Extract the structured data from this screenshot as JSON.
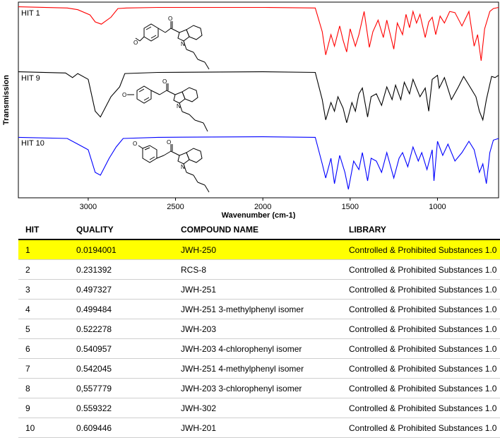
{
  "chart_data": {
    "type": "line",
    "ylabel": "Transmission",
    "xlabel": "Wavenumber (cm-1)",
    "xlim": [
      3400,
      650
    ],
    "x_ticks": [
      3000,
      2500,
      2000,
      1500,
      1000
    ],
    "series": [
      {
        "name": "HIT 1",
        "color": "#ff0000",
        "x": [
          3400,
          3120,
          3060,
          2990,
          2960,
          2925,
          2870,
          2830,
          2780,
          2600,
          2000,
          1700,
          1660,
          1640,
          1610,
          1590,
          1560,
          1540,
          1520,
          1500,
          1470,
          1450,
          1420,
          1390,
          1370,
          1340,
          1310,
          1290,
          1250,
          1230,
          1200,
          1180,
          1160,
          1140,
          1120,
          1100,
          1070,
          1050,
          1030,
          1010,
          985,
          960,
          930,
          900,
          860,
          820,
          790,
          770,
          750,
          730,
          700,
          680,
          650
        ],
        "y": [
          0.98,
          0.96,
          0.93,
          0.84,
          0.72,
          0.68,
          0.8,
          0.95,
          0.96,
          0.97,
          0.97,
          0.96,
          0.55,
          0.15,
          0.5,
          0.3,
          0.65,
          0.4,
          0.2,
          0.6,
          0.3,
          0.5,
          0.9,
          0.28,
          0.55,
          0.75,
          0.45,
          0.75,
          0.25,
          0.7,
          0.5,
          0.85,
          0.62,
          0.9,
          0.7,
          0.85,
          0.45,
          0.72,
          0.8,
          0.5,
          0.82,
          0.7,
          0.9,
          0.88,
          0.65,
          0.9,
          0.3,
          0.5,
          0.05,
          0.6,
          0.9,
          0.95,
          0.97
        ]
      },
      {
        "name": "HIT 9",
        "color": "#000000",
        "x": [
          3400,
          3130,
          3090,
          3060,
          3000,
          2960,
          2930,
          2870,
          2820,
          2790,
          2600,
          2000,
          1700,
          1660,
          1640,
          1610,
          1590,
          1570,
          1540,
          1520,
          1490,
          1470,
          1450,
          1430,
          1400,
          1380,
          1350,
          1320,
          1290,
          1260,
          1240,
          1210,
          1190,
          1160,
          1140,
          1100,
          1070,
          1050,
          1030,
          1000,
          990,
          960,
          920,
          880,
          850,
          820,
          780,
          760,
          740,
          720,
          690,
          670,
          650
        ],
        "y": [
          0.98,
          0.96,
          0.88,
          0.95,
          0.85,
          0.3,
          0.2,
          0.55,
          0.72,
          0.95,
          0.97,
          0.98,
          0.97,
          0.5,
          0.15,
          0.45,
          0.3,
          0.55,
          0.35,
          0.1,
          0.45,
          0.3,
          0.6,
          0.7,
          0.2,
          0.55,
          0.6,
          0.4,
          0.72,
          0.5,
          0.75,
          0.5,
          0.8,
          0.6,
          0.85,
          0.55,
          0.7,
          0.3,
          0.85,
          0.92,
          0.7,
          0.88,
          0.5,
          0.72,
          0.9,
          0.75,
          0.55,
          0.3,
          0.15,
          0.5,
          0.9,
          0.88,
          0.92
        ]
      },
      {
        "name": "HIT 10",
        "color": "#0000ff",
        "x": [
          3400,
          3120,
          3060,
          3000,
          2960,
          2930,
          2880,
          2840,
          2800,
          2600,
          2000,
          1700,
          1660,
          1640,
          1610,
          1590,
          1560,
          1530,
          1510,
          1480,
          1450,
          1430,
          1400,
          1380,
          1350,
          1320,
          1290,
          1250,
          1220,
          1200,
          1170,
          1140,
          1110,
          1090,
          1060,
          1030,
          1020,
          1000,
          970,
          940,
          900,
          860,
          820,
          790,
          760,
          740,
          720,
          700,
          680,
          650
        ],
        "y": [
          0.97,
          0.95,
          0.85,
          0.75,
          0.35,
          0.3,
          0.6,
          0.8,
          0.95,
          0.97,
          0.98,
          0.97,
          0.5,
          0.25,
          0.6,
          0.15,
          0.65,
          0.35,
          0.05,
          0.55,
          0.4,
          0.7,
          0.2,
          0.6,
          0.55,
          0.35,
          0.7,
          0.25,
          0.6,
          0.7,
          0.45,
          0.8,
          0.55,
          0.7,
          0.4,
          0.75,
          0.2,
          0.9,
          0.65,
          0.85,
          0.55,
          0.7,
          0.9,
          0.75,
          0.35,
          0.5,
          0.15,
          0.7,
          0.92,
          0.95
        ]
      }
    ]
  },
  "table": {
    "headers": [
      "HIT",
      "QUALITY",
      "COMPOUND NAME",
      "LIBRARY"
    ],
    "highlight_color": "#ffff00",
    "rows": [
      [
        "1",
        "0.0194001",
        "JWH-250",
        "Controlled & Prohibited Substances 1.0"
      ],
      [
        "2",
        "0.231392",
        "RCS-8",
        "Controlled & Prohibited Substances 1.0"
      ],
      [
        "3",
        "0.497327",
        "JWH-251",
        "Controlled & Prohibited Substances 1.0"
      ],
      [
        "4",
        "0.499484",
        "JWH-251 3-methylphenyl isomer",
        "Controlled & Prohibited Substances 1.0"
      ],
      [
        "5",
        "0.522278",
        "JWH-203",
        "Controlled & Prohibited Substances 1.0"
      ],
      [
        "6",
        "0.540957",
        "JWH-203 4-chlorophenyl isomer",
        "Controlled & Prohibited Substances 1.0"
      ],
      [
        "7",
        "0.542045",
        "JWH-251 4-methylphenyl isomer",
        "Controlled & Prohibited Substances 1.0"
      ],
      [
        "8",
        "0,557779",
        "JWH-203 3-chlorophenyl isomer",
        "Controlled & Prohibited Substances 1.0"
      ],
      [
        "9",
        "0.559322",
        "JWH-302",
        "Controlled & Prohibited Substances 1.0"
      ],
      [
        "10",
        "0.609446",
        "JWH-201",
        "Controlled & Prohibited Substances 1.0"
      ]
    ]
  },
  "structures": [
    {
      "name": "HIT 1 structure",
      "substituent": "O",
      "n_label": "N",
      "ketone": "O"
    },
    {
      "name": "HIT 9 structure",
      "substituent": "O",
      "n_label": "N",
      "ketone": "O"
    },
    {
      "name": "HIT 10 structure",
      "substituent": "O",
      "n_label": "N",
      "ketone": "O"
    }
  ]
}
